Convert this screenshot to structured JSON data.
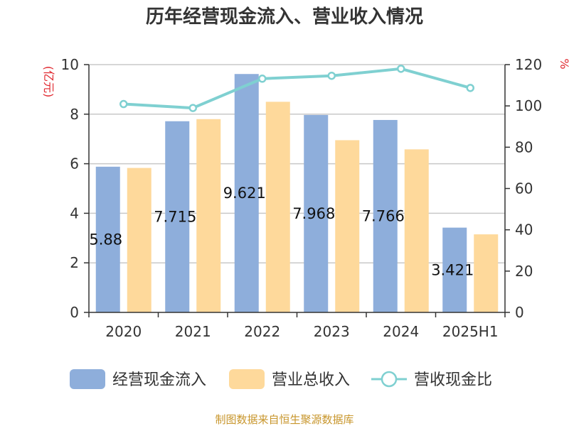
{
  "chart_data": {
    "type": "bar",
    "title": "历年经营现金流入、营业收入情况",
    "categories": [
      "2020",
      "2021",
      "2022",
      "2023",
      "2024",
      "2025H1"
    ],
    "series": [
      {
        "name": "经营现金流入",
        "kind": "bar",
        "axis": "left",
        "color": "#8eaedb",
        "values": [
          5.88,
          7.715,
          9.621,
          7.968,
          7.766,
          3.421
        ],
        "labels": [
          "5.88",
          "7.715",
          "9.621",
          "7.968",
          "7.766",
          "3.421"
        ]
      },
      {
        "name": "营业总收入",
        "kind": "bar",
        "axis": "left",
        "color": "#fed99b",
        "values": [
          5.83,
          7.8,
          8.5,
          6.95,
          6.58,
          3.15
        ]
      },
      {
        "name": "营收现金比",
        "kind": "line",
        "axis": "right",
        "color": "#7fd0d1",
        "values": [
          100.9,
          99.0,
          113.2,
          114.6,
          118.0,
          108.7
        ]
      }
    ],
    "y_left": {
      "unit": "(亿元)",
      "min": 0,
      "max": 10,
      "ticks": [
        0,
        2,
        4,
        6,
        8,
        10
      ],
      "unit_color": "#e0282f"
    },
    "y_right": {
      "unit": "%",
      "min": 0,
      "max": 120,
      "ticks": [
        0,
        20,
        40,
        60,
        80,
        100,
        120
      ],
      "unit_color": "#e0282f"
    },
    "grid": true,
    "legend_position": "bottom"
  },
  "source": {
    "text": "制图数据来自恒生聚源数据库",
    "color": "#c8962c"
  }
}
